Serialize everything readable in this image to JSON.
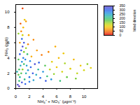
{
  "chart_data": {
    "type": "scatter",
    "x_label": "NH₄⁺ + NO₃⁻ (μgm⁻³)",
    "y_label": "NH₃ (ppb)",
    "xlim": [
      0,
      12
    ],
    "xticks": [
      0,
      2,
      4,
      6,
      8,
      10
    ],
    "ylim": [
      0,
      11
    ],
    "yticks": [
      0,
      2,
      4,
      6,
      8,
      10
    ],
    "x": [
      0.5,
      0.6,
      0.8,
      1.0,
      0.7,
      0.9,
      1.1,
      0.6,
      0.8,
      1.0,
      1.2,
      0.9,
      1.0,
      0.8,
      1.1,
      0.7,
      1.3,
      1.0,
      0.5,
      0.4,
      1.3,
      1.5,
      1.6,
      1.4,
      1.7,
      1.2,
      1.5,
      1.8,
      2.0,
      2.2,
      2.5,
      2.8,
      3.0,
      3.3,
      3.6,
      4.0,
      4.3,
      4.6,
      5.0,
      5.3,
      5.6,
      6.0,
      6.3,
      6.8,
      7.2,
      7.5,
      8.0,
      8.5,
      9.0,
      9.5,
      10.0,
      10.5,
      11.0,
      0.3,
      0.5,
      0.9,
      1.4,
      2.0,
      2.6,
      0.6,
      0.4,
      1.8,
      2.3,
      3.1,
      3.8,
      1.9,
      2.6,
      0.4,
      1.5,
      4.8,
      5.8,
      7.0,
      0.2,
      1.2,
      2.1,
      3.4,
      4.4,
      5.2,
      6.5,
      8.8
    ],
    "y": [
      1.0,
      1.5,
      2.0,
      2.5,
      3.0,
      3.5,
      4.0,
      4.5,
      5.0,
      5.5,
      6.0,
      6.5,
      7.0,
      7.5,
      8.0,
      8.5,
      9.0,
      10.5,
      2.5,
      1.8,
      1.2,
      2.0,
      3.0,
      3.8,
      4.5,
      4.8,
      5.3,
      2.4,
      1.5,
      2.8,
      2.0,
      3.2,
      1.8,
      2.5,
      1.4,
      2.2,
      3.0,
      1.6,
      2.5,
      3.5,
      1.9,
      2.8,
      4.0,
      2.2,
      3.3,
      1.5,
      2.6,
      3.8,
      2.0,
      3.0,
      2.4,
      3.2,
      2.7,
      0.5,
      0.3,
      0.8,
      0.6,
      0.9,
      1.1,
      6.0,
      3.8,
      5.8,
      4.2,
      5.0,
      4.4,
      7.0,
      6.4,
      7.2,
      8.8,
      4.8,
      5.5,
      4.6,
      2.2,
      3.2,
      3.6,
      3.4,
      1.0,
      1.2,
      1.0,
      1.3
    ],
    "wind_direction": [
      200,
      220,
      180,
      150,
      240,
      260,
      280,
      300,
      310,
      330,
      320,
      290,
      120,
      60,
      90,
      40,
      100,
      30,
      190,
      170,
      210,
      230,
      250,
      270,
      200,
      160,
      140,
      260,
      280,
      300,
      310,
      330,
      240,
      220,
      290,
      260,
      180,
      200,
      130,
      110,
      150,
      100,
      90,
      120,
      140,
      170,
      110,
      90,
      130,
      100,
      120,
      150,
      110,
      330,
      350,
      320,
      300,
      280,
      250,
      70,
      180,
      60,
      80,
      70,
      50,
      80,
      60,
      150,
      70,
      60,
      80,
      100,
      230,
      190,
      270,
      300,
      310,
      260,
      200,
      160
    ],
    "colorbar": {
      "label": "Wind direction",
      "lim": [
        0,
        350
      ],
      "ticks": [
        0,
        50,
        100,
        150,
        200,
        250,
        300,
        350
      ]
    }
  }
}
